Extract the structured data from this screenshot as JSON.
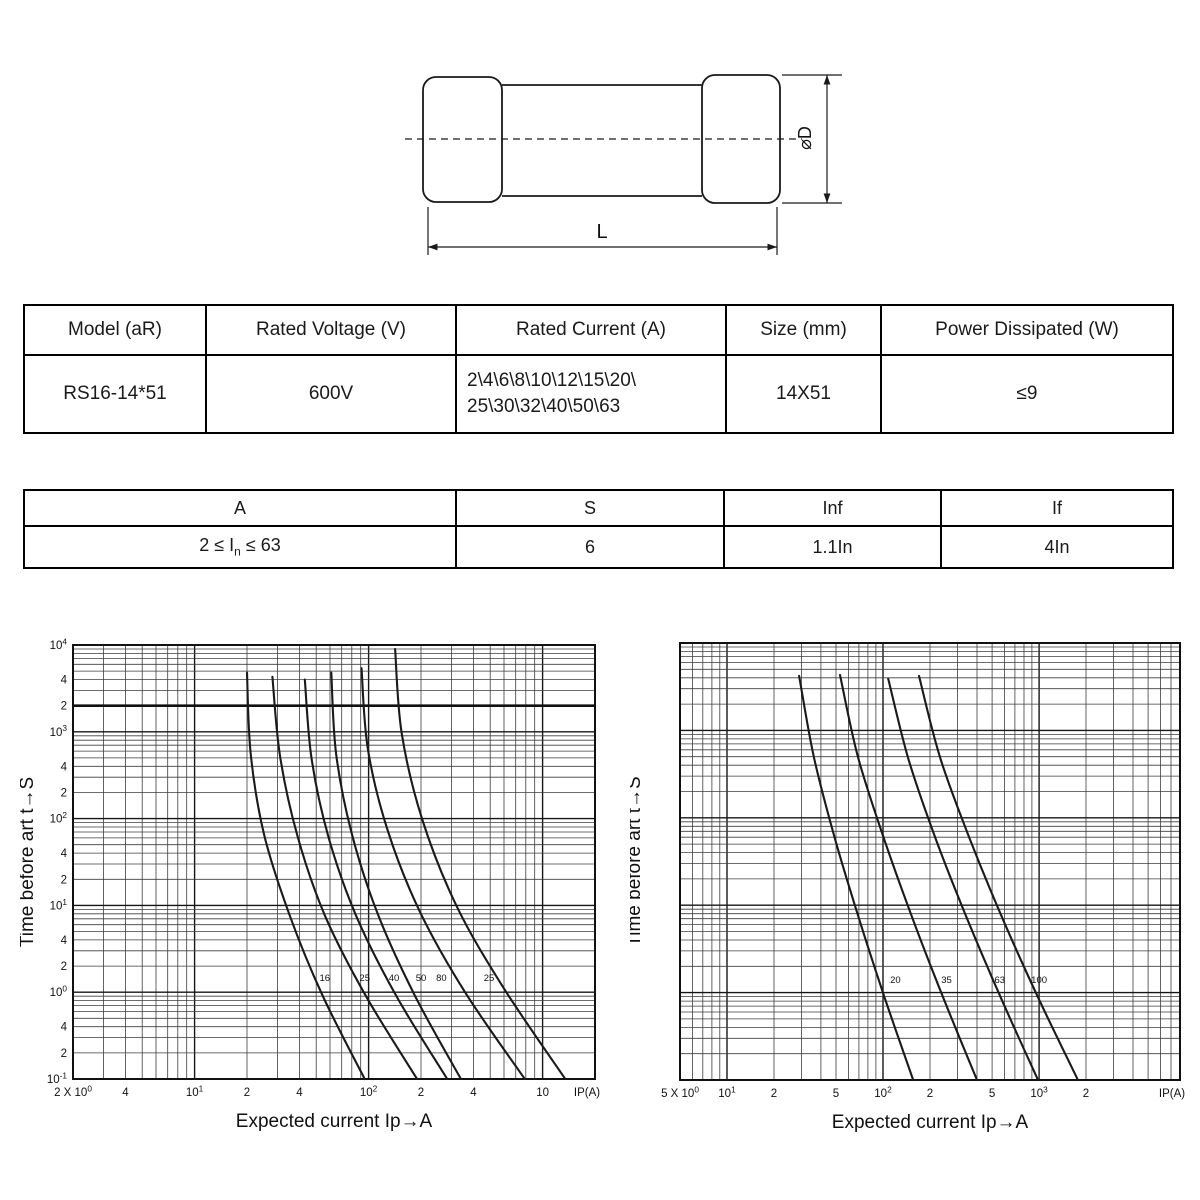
{
  "page": {
    "background": "#ffffff",
    "ink": "#1a1a1a"
  },
  "diagram": {
    "length_label": "L",
    "diameter_label": "⌀D"
  },
  "spec_table": {
    "headers": [
      "Model (aR)",
      "Rated Voltage (V)",
      "Rated Current (A)",
      "Size (mm)",
      "Power Dissipated (W)"
    ],
    "row": {
      "model": "RS16-14*51",
      "voltage": "600V",
      "current": "2\\4\\6\\8\\10\\12\\15\\20\\\n25\\30\\32\\40\\50\\63",
      "size": "14X51",
      "power": "≤9"
    }
  },
  "char_table": {
    "headers": [
      "A",
      "S",
      "Inf",
      "If"
    ],
    "row": {
      "a_pre": "2 ≤ I",
      "a_sub": "n",
      "a_post": " ≤ 63",
      "s": "6",
      "inf": "1.1In",
      "if": "4In"
    }
  },
  "chart_data": [
    {
      "type": "line",
      "position": "left",
      "xlabel": "Expected current Ip→A",
      "ylabel": "Time before art t→S",
      "x_axis_unit": "IP(A)",
      "x_scale": "log",
      "y_scale": "log",
      "x_range": [
        2,
        2000
      ],
      "y_range": [
        0.1,
        10000
      ],
      "grid": "full log-log minor 2-9",
      "legend_position": "inline-labels",
      "bold_gridline_y": 2000,
      "x_ticks": [
        [
          2,
          "2 X 10^0"
        ],
        [
          4,
          "4"
        ],
        [
          10,
          "10^1"
        ],
        [
          20,
          "2"
        ],
        [
          40,
          "4"
        ],
        [
          100,
          "10^2"
        ],
        [
          200,
          "2"
        ],
        [
          400,
          "4"
        ],
        [
          1000,
          "10"
        ]
      ],
      "y_ticks": [
        [
          10000,
          "10^4"
        ],
        [
          4000,
          "4"
        ],
        [
          2000,
          "2"
        ],
        [
          1000,
          "10^3"
        ],
        [
          400,
          "4"
        ],
        [
          200,
          "2"
        ],
        [
          100,
          "10^2"
        ],
        [
          40,
          "4"
        ],
        [
          20,
          "2"
        ],
        [
          10,
          "10^1"
        ],
        [
          4,
          "4"
        ],
        [
          2,
          "2"
        ],
        [
          1,
          "10^0"
        ],
        [
          0.4,
          "4"
        ],
        [
          0.2,
          "2"
        ],
        [
          0.1,
          "10^-1"
        ]
      ],
      "series": [
        {
          "label": "16",
          "label_at": [
            56,
            1.45
          ],
          "points": [
            [
              20,
              4800
            ],
            [
              21,
              560
            ],
            [
              25,
              67
            ],
            [
              35,
              7.9
            ],
            [
              54,
              0.94
            ],
            [
              95,
              0.1
            ]
          ]
        },
        {
          "label": "25",
          "label_at": [
            95,
            1.45
          ],
          "points": [
            [
              28,
              4300
            ],
            [
              31,
              520
            ],
            [
              39,
              63
            ],
            [
              56,
              7.7
            ],
            [
              96,
              0.92
            ],
            [
              190,
              0.1
            ]
          ]
        },
        {
          "label": "40",
          "label_at": [
            140,
            1.45
          ],
          "points": [
            [
              43,
              4000
            ],
            [
              47,
              490
            ],
            [
              59,
              60
            ],
            [
              85,
              7.5
            ],
            [
              144,
              0.91
            ],
            [
              283,
              0.1
            ]
          ]
        },
        {
          "label": "50",
          "label_at": [
            200,
            1.45
          ],
          "points": [
            [
              61,
              4800
            ],
            [
              65,
              560
            ],
            [
              80,
              67
            ],
            [
              113,
              7.9
            ],
            [
              183,
              0.94
            ],
            [
              339,
              0.1
            ]
          ]
        },
        {
          "label": "80",
          "label_at": [
            262,
            1.45
          ],
          "points": [
            [
              91,
              5400
            ],
            [
              99,
              630
            ],
            [
              129,
              72
            ],
            [
              198,
              8.3
            ],
            [
              363,
              0.96
            ],
            [
              790,
              0.1
            ]
          ]
        },
        {
          "label": "25",
          "label_at": [
            492,
            1.45
          ],
          "points": [
            [
              142,
              9000
            ],
            [
              155,
              960
            ],
            [
              203,
              99
            ],
            [
              319,
              10
            ],
            [
              600,
              1.1
            ],
            [
              1350,
              0.1
            ]
          ]
        }
      ]
    },
    {
      "type": "line",
      "position": "right",
      "xlabel": "Expected current Ip→A",
      "ylabel": "Time before art t→S",
      "x_axis_unit": "IP(A)",
      "x_scale": "log",
      "y_scale": "log",
      "x_range": [
        5,
        8000
      ],
      "y_range": [
        0.1,
        10000
      ],
      "grid": "full log-log minor 2-9",
      "legend_position": "inline-labels",
      "x_ticks": [
        [
          5,
          "5 X 10^0"
        ],
        [
          10,
          "10^1"
        ],
        [
          20,
          "2"
        ],
        [
          50,
          "5"
        ],
        [
          100,
          "10^2"
        ],
        [
          200,
          "2"
        ],
        [
          500,
          "5"
        ],
        [
          1000,
          "10^3"
        ],
        [
          2000,
          "2"
        ]
      ],
      "y_ticks": [],
      "series": [
        {
          "label": "20",
          "label_at": [
            120,
            1.4
          ],
          "points": [
            [
              29,
              4200
            ],
            [
              36,
              500
            ],
            [
              49,
              59
            ],
            [
              70,
              7.1
            ],
            [
              103,
              0.85
            ],
            [
              156,
              0.1
            ]
          ]
        },
        {
          "label": "35",
          "label_at": [
            255,
            1.4
          ],
          "points": [
            [
              53,
              4300
            ],
            [
              69,
              500
            ],
            [
              101,
              59
            ],
            [
              154,
              7.2
            ],
            [
              244,
              0.86
            ],
            [
              400,
              0.1
            ]
          ]
        },
        {
          "label": "63",
          "label_at": [
            560,
            1.4
          ],
          "points": [
            [
              108,
              3900
            ],
            [
              145,
              480
            ],
            [
              218,
              57
            ],
            [
              346,
              7
            ],
            [
              574,
              0.84
            ],
            [
              984,
              0.1
            ]
          ]
        },
        {
          "label": "100",
          "label_at": [
            1000,
            1.4
          ],
          "points": [
            [
              170,
              4200
            ],
            [
              232,
              490
            ],
            [
              359,
              58
            ],
            [
              586,
              6.9
            ],
            [
              1004,
              0.82
            ],
            [
              1774,
              0.1
            ]
          ]
        }
      ]
    }
  ]
}
